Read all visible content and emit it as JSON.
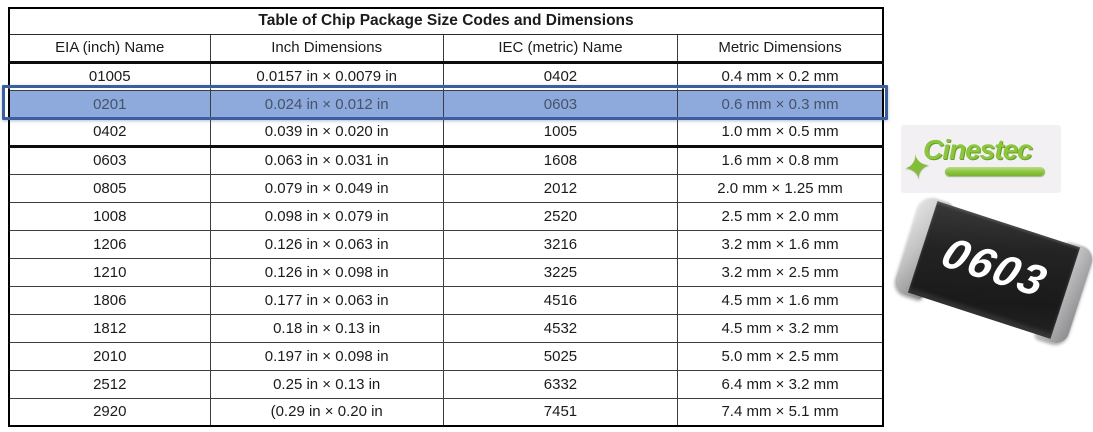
{
  "table": {
    "title": "Table of Chip Package Size Codes and Dimensions",
    "columns": [
      "EIA (inch) Name",
      "Inch Dimensions",
      "IEC (metric) Name",
      "Metric Dimensions"
    ],
    "rows": [
      {
        "eia": "01005",
        "inch": "0.0157 in × 0.0079 in",
        "iec": "0402",
        "metric": "0.4 mm × 0.2 mm"
      },
      {
        "eia": "0201",
        "inch": "0.024 in × 0.012 in",
        "iec": "0603",
        "metric": "0.6 mm × 0.3 mm"
      },
      {
        "eia": "0402",
        "inch": "0.039 in × 0.020 in",
        "iec": "1005",
        "metric": "1.0 mm × 0.5 mm"
      },
      {
        "eia": "0603",
        "inch": "0.063 in × 0.031 in",
        "iec": "1608",
        "metric": "1.6 mm × 0.8 mm"
      },
      {
        "eia": "0805",
        "inch": "0.079 in × 0.049 in",
        "iec": "2012",
        "metric": "2.0 mm × 1.25 mm"
      },
      {
        "eia": "1008",
        "inch": "0.098 in × 0.079 in",
        "iec": "2520",
        "metric": "2.5 mm × 2.0 mm"
      },
      {
        "eia": "1206",
        "inch": "0.126 in × 0.063 in",
        "iec": "3216",
        "metric": "3.2 mm × 1.6 mm"
      },
      {
        "eia": "1210",
        "inch": "0.126 in × 0.098 in",
        "iec": "3225",
        "metric": "3.2 mm × 2.5 mm"
      },
      {
        "eia": "1806",
        "inch": "0.177 in × 0.063 in",
        "iec": "4516",
        "metric": "4.5 mm × 1.6 mm"
      },
      {
        "eia": "1812",
        "inch": "0.18 in × 0.13 in",
        "iec": "4532",
        "metric": "4.5 mm × 3.2 mm"
      },
      {
        "eia": "2010",
        "inch": "0.197 in × 0.098 in",
        "iec": "5025",
        "metric": "5.0 mm × 2.5 mm"
      },
      {
        "eia": "2512",
        "inch": "0.25 in × 0.13 in",
        "iec": "6332",
        "metric": "6.4 mm × 3.2 mm"
      },
      {
        "eia": "2920",
        "inch": "(0.29 in × 0.20 in",
        "iec": "7451",
        "metric": "7.4 mm × 5.1 mm"
      }
    ],
    "highlighted_row_eia": "0201",
    "highlight_fill": "#8EA9DB",
    "highlight_border": "#3A5F9E",
    "highlight_text_color": "#44546A"
  },
  "logo": {
    "text": "Cinestec",
    "star_icon": "✦",
    "brand_color": "#8CC63F"
  },
  "chip_photo": {
    "label": "0603",
    "body_color": "#232323",
    "cap_color": "#c3c3c4"
  }
}
